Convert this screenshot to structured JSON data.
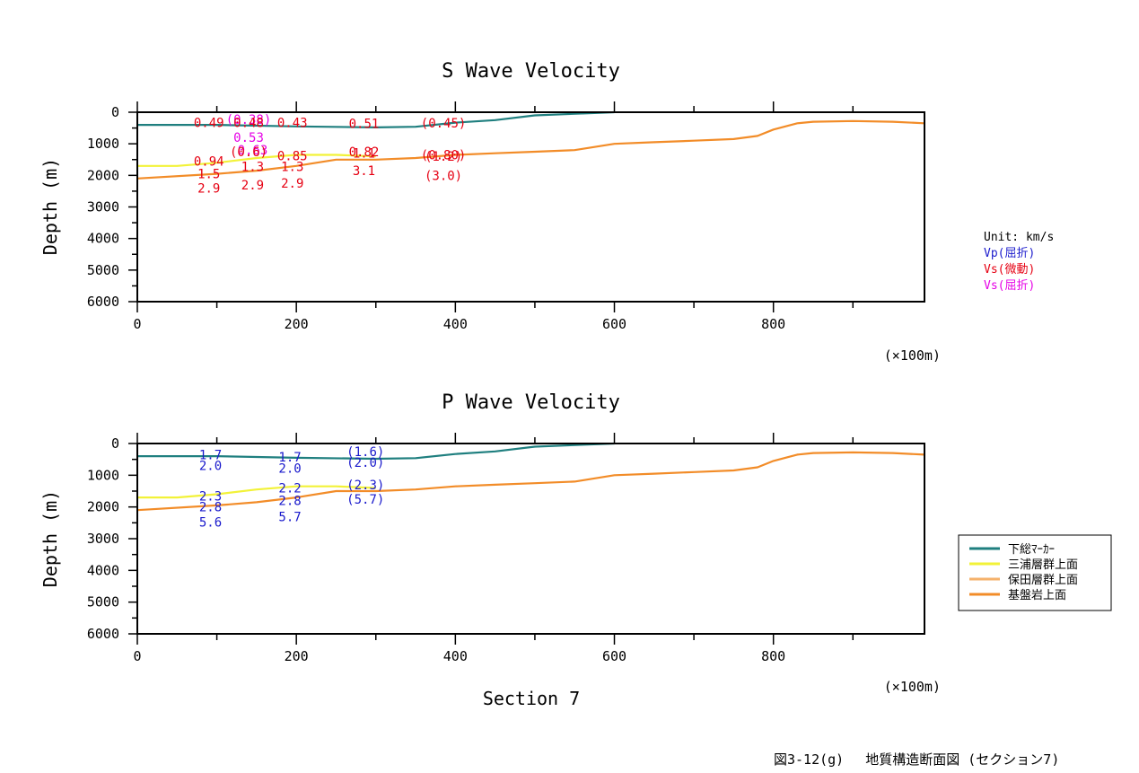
{
  "chart_data": [
    {
      "type": "line",
      "title": "S Wave Velocity",
      "xlabel": "",
      "ylabel": "Depth (m)",
      "x_unit_note": "(×100m)",
      "xlim": [
        0,
        990
      ],
      "ylim": [
        6000,
        0
      ],
      "y_inverted": true,
      "xticks": [
        "0",
        "200",
        "400",
        "600",
        "800"
      ],
      "yticks": [
        "0",
        "1000",
        "2000",
        "3000",
        "4000",
        "5000",
        "6000"
      ],
      "series": [
        {
          "name": "下総ﾏｰｶｰ",
          "color": "#1f7f7f",
          "x": [
            0,
            100,
            200,
            300,
            350,
            400,
            450,
            500,
            600
          ],
          "y": [
            400,
            400,
            450,
            480,
            460,
            330,
            250,
            100,
            0
          ]
        },
        {
          "name": "三浦層群上面",
          "color": "#f2f238",
          "x": [
            0,
            50,
            100,
            150,
            200,
            250,
            300
          ],
          "y": [
            1700,
            1700,
            1600,
            1450,
            1350,
            1350,
            1400
          ]
        },
        {
          "name": "基盤岩上面",
          "color": "#f28c28",
          "x": [
            0,
            100,
            150,
            200,
            250,
            300,
            350,
            400,
            450,
            500,
            550,
            600,
            650,
            700,
            750,
            780,
            800,
            830,
            850,
            900,
            950,
            990
          ],
          "y": [
            2100,
            1950,
            1850,
            1700,
            1500,
            1500,
            1450,
            1350,
            1300,
            1250,
            1200,
            1000,
            950,
            900,
            850,
            750,
            550,
            350,
            300,
            280,
            300,
            350
          ]
        }
      ],
      "annotations": [
        {
          "text": "0.49",
          "x": 90,
          "y": 330,
          "color": "#e60012"
        },
        {
          "text": "(0.38)",
          "x": 140,
          "y": 230,
          "color": "#e600e6"
        },
        {
          "text": "0.48",
          "x": 140,
          "y": 330,
          "color": "#e60012"
        },
        {
          "text": "0.43",
          "x": 195,
          "y": 330,
          "color": "#e60012"
        },
        {
          "text": "0.51",
          "x": 285,
          "y": 360,
          "color": "#e60012"
        },
        {
          "text": "(0.45)",
          "x": 385,
          "y": 340,
          "color": "#e60012"
        },
        {
          "text": "0.53",
          "x": 140,
          "y": 800,
          "color": "#e600e6"
        },
        {
          "text": "0.63",
          "x": 145,
          "y": 1200,
          "color": "#e600e6"
        },
        {
          "text": "(0.6)",
          "x": 140,
          "y": 1250,
          "color": "#e60012"
        },
        {
          "text": "0.85",
          "x": 195,
          "y": 1380,
          "color": "#e60012"
        },
        {
          "text": "0.82",
          "x": 285,
          "y": 1250,
          "color": "#e60012"
        },
        {
          "text": "1.1",
          "x": 285,
          "y": 1300,
          "color": "#e60012"
        },
        {
          "text": "(0.80)",
          "x": 385,
          "y": 1350,
          "color": "#e60012"
        },
        {
          "text": "(1.2)",
          "x": 385,
          "y": 1400,
          "color": "#e60012"
        },
        {
          "text": "0.94",
          "x": 90,
          "y": 1550,
          "color": "#e60012"
        },
        {
          "text": "1.3",
          "x": 145,
          "y": 1720,
          "color": "#e60012"
        },
        {
          "text": "1.3",
          "x": 195,
          "y": 1720,
          "color": "#e60012"
        },
        {
          "text": "1.5",
          "x": 90,
          "y": 1950,
          "color": "#e60012"
        },
        {
          "text": "3.1",
          "x": 285,
          "y": 1850,
          "color": "#e60012"
        },
        {
          "text": "(3.0)",
          "x": 385,
          "y": 2000,
          "color": "#e60012"
        },
        {
          "text": "2.9",
          "x": 90,
          "y": 2400,
          "color": "#e60012"
        },
        {
          "text": "2.9",
          "x": 145,
          "y": 2300,
          "color": "#e60012"
        },
        {
          "text": "2.9",
          "x": 195,
          "y": 2250,
          "color": "#e60012"
        }
      ]
    },
    {
      "type": "line",
      "title": "P Wave Velocity",
      "xlabel": "Section 7",
      "ylabel": "Depth (m)",
      "x_unit_note": "(×100m)",
      "xlim": [
        0,
        990
      ],
      "ylim": [
        6000,
        0
      ],
      "y_inverted": true,
      "xticks": [
        "0",
        "200",
        "400",
        "600",
        "800"
      ],
      "yticks": [
        "0",
        "1000",
        "2000",
        "3000",
        "4000",
        "5000",
        "6000"
      ],
      "series": [
        {
          "name": "下総ﾏｰｶｰ",
          "color": "#1f7f7f",
          "x": [
            0,
            100,
            200,
            300,
            350,
            400,
            450,
            500,
            600
          ],
          "y": [
            400,
            400,
            450,
            480,
            460,
            330,
            250,
            100,
            0
          ]
        },
        {
          "name": "三浦層群上面",
          "color": "#f2f238",
          "x": [
            0,
            50,
            100,
            150,
            200,
            250,
            300
          ],
          "y": [
            1700,
            1700,
            1600,
            1450,
            1350,
            1350,
            1400
          ]
        },
        {
          "name": "基盤岩上面",
          "color": "#f28c28",
          "x": [
            0,
            100,
            150,
            200,
            250,
            300,
            350,
            400,
            450,
            500,
            550,
            600,
            650,
            700,
            750,
            780,
            800,
            830,
            850,
            900,
            950,
            990
          ],
          "y": [
            2100,
            1950,
            1850,
            1700,
            1500,
            1500,
            1450,
            1350,
            1300,
            1250,
            1200,
            1000,
            950,
            900,
            850,
            750,
            550,
            350,
            300,
            280,
            300,
            350
          ]
        }
      ],
      "annotations": [
        {
          "text": "1.7",
          "x": 92,
          "y": 350,
          "color": "#1a1acc"
        },
        {
          "text": "2.0",
          "x": 92,
          "y": 700,
          "color": "#1a1acc"
        },
        {
          "text": "1.7",
          "x": 192,
          "y": 430,
          "color": "#1a1acc"
        },
        {
          "text": "2.0",
          "x": 192,
          "y": 780,
          "color": "#1a1acc"
        },
        {
          "text": "(1.6)",
          "x": 287,
          "y": 250,
          "color": "#1a1acc"
        },
        {
          "text": "(2.0)",
          "x": 287,
          "y": 600,
          "color": "#1a1acc"
        },
        {
          "text": "2.3",
          "x": 92,
          "y": 1650,
          "color": "#1a1acc"
        },
        {
          "text": "2.8",
          "x": 92,
          "y": 1990,
          "color": "#1a1acc"
        },
        {
          "text": "5.6",
          "x": 92,
          "y": 2480,
          "color": "#1a1acc"
        },
        {
          "text": "2.2",
          "x": 192,
          "y": 1400,
          "color": "#1a1acc"
        },
        {
          "text": "2.8",
          "x": 192,
          "y": 1800,
          "color": "#1a1acc"
        },
        {
          "text": "5.7",
          "x": 192,
          "y": 2300,
          "color": "#1a1acc"
        },
        {
          "text": "(2.3)",
          "x": 287,
          "y": 1300,
          "color": "#1a1acc"
        },
        {
          "text": "(5.7)",
          "x": 287,
          "y": 1750,
          "color": "#1a1acc"
        }
      ]
    }
  ],
  "unit_legend": {
    "title": "Unit: km/s",
    "items": [
      {
        "text": "Vp(屈折)",
        "color": "#1a1acc"
      },
      {
        "text": "Vs(微動)",
        "color": "#e60012"
      },
      {
        "text": "Vs(屈折)",
        "color": "#e600e6"
      }
    ]
  },
  "line_legend": {
    "items": [
      {
        "label": "下総ﾏｰｶｰ",
        "color": "#1f7f7f"
      },
      {
        "label": "三浦層群上面",
        "color": "#f2f238"
      },
      {
        "label": "保田層群上面",
        "color": "#f5b26b"
      },
      {
        "label": "基盤岩上面",
        "color": "#f28c28"
      }
    ]
  },
  "caption": "図3-12(g)　 地質構造断面図 (セクション7)"
}
